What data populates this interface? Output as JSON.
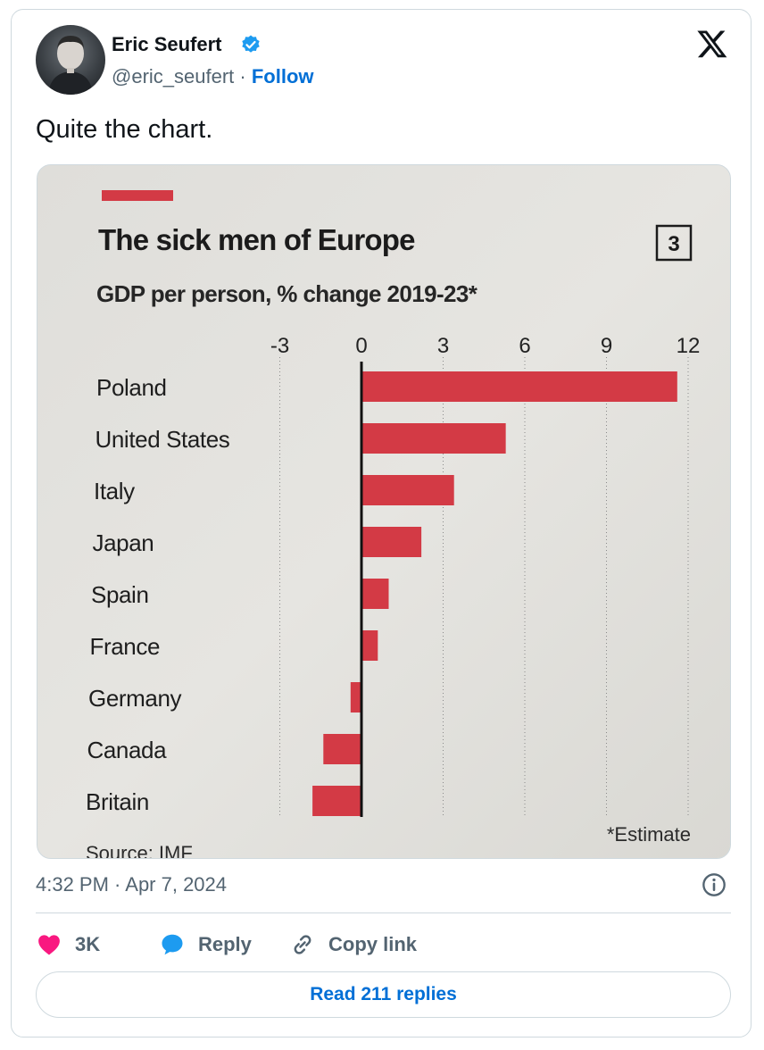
{
  "author": {
    "name": "Eric Seufert",
    "handle": "@eric_seufert",
    "separator": " · ",
    "follow_label": "Follow"
  },
  "tweet": {
    "text": "Quite the chart.",
    "timestamp": "4:32 PM · Apr 7, 2024"
  },
  "actions": {
    "like_count": "3K",
    "reply_label": "Reply",
    "copy_link_label": "Copy link"
  },
  "read_replies_label": "Read 211 replies",
  "colors": {
    "like": "#f91880",
    "reply": "#1d9bf0",
    "link": "#006fd6",
    "bar": "#d33a45",
    "verified": "#1d9bf0"
  },
  "chart_data": {
    "type": "bar",
    "orientation": "horizontal",
    "title": "The sick men of Europe",
    "subtitle": "GDP per person, % change 2019-23*",
    "badge": "3",
    "categories": [
      "Poland",
      "United States",
      "Italy",
      "Japan",
      "Spain",
      "France",
      "Germany",
      "Canada",
      "Britain"
    ],
    "values": [
      11.6,
      5.3,
      3.4,
      2.2,
      1.0,
      0.6,
      -0.4,
      -1.4,
      -1.8
    ],
    "ticks": [
      -3,
      0,
      3,
      6,
      9,
      12
    ],
    "tick_labels": [
      "-3",
      "0",
      "3",
      "6",
      "9",
      "12"
    ],
    "xlim": [
      -3.5,
      13
    ],
    "footnote": "*Estimate",
    "source": "Source: IMF"
  }
}
